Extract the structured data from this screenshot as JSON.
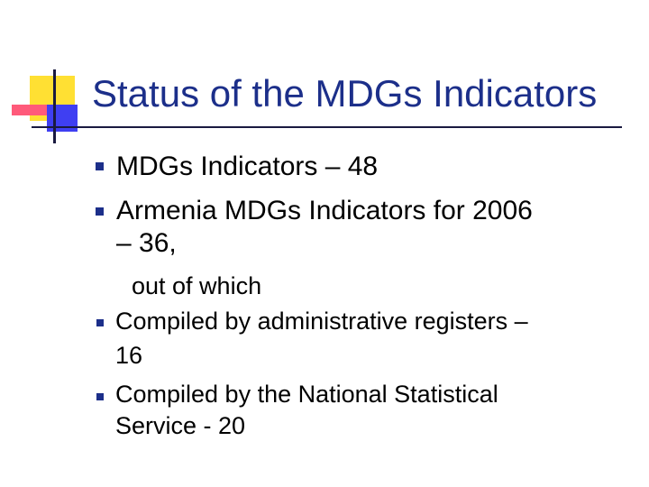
{
  "colors": {
    "yellow": "#ffe033",
    "pink": "#ff5a7a",
    "blue": "#3f3ff2",
    "navy": "#1a1a40",
    "title": "#1c2f8a",
    "bullet": "#1c2f8a"
  },
  "slide": {
    "title": "Status of the MDGs Indicators",
    "bullets": [
      {
        "lines": [
          "MDGs Indicators – 48"
        ]
      },
      {
        "lines": [
          "Armenia MDGs Indicators for 2006",
          "– 36,"
        ]
      },
      {
        "lines": [
          "out of which"
        ],
        "nobullet": true
      },
      {
        "lines": [
          "Compiled by administrative registers –",
          "16"
        ]
      },
      {
        "lines": [
          "Compiled by the National Statistical",
          "Service - 20"
        ]
      }
    ]
  }
}
